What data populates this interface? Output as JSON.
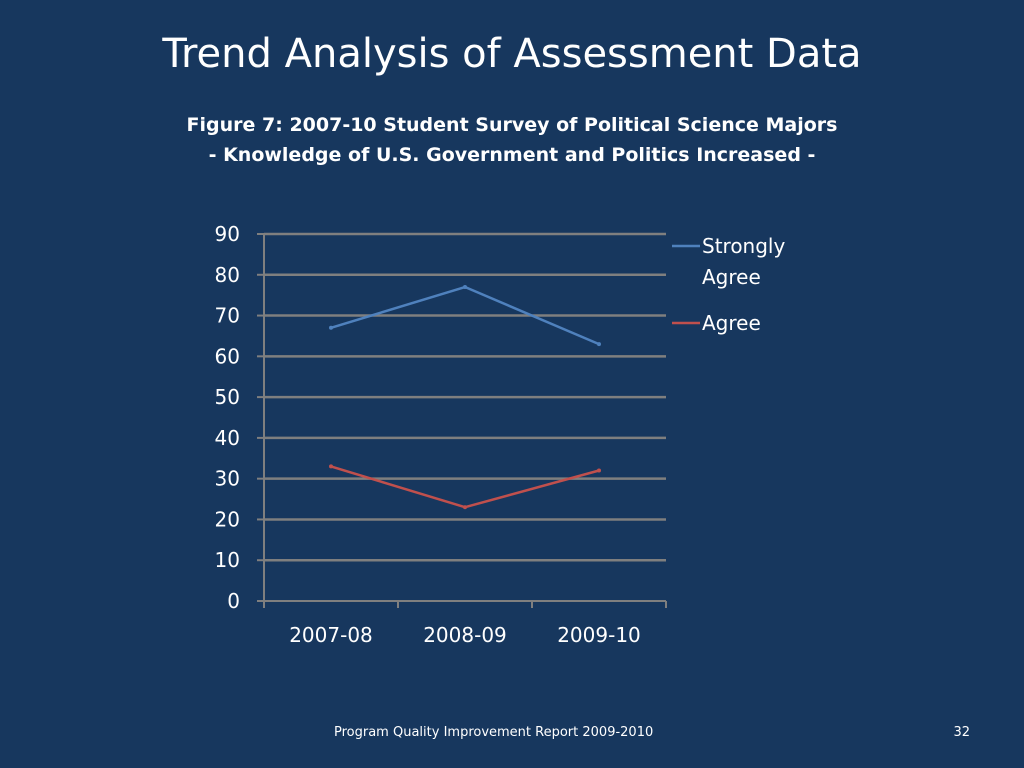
{
  "slide": {
    "title": "Trend Analysis of Assessment Data",
    "caption_line1": "Figure 7: 2007-10 Student Survey of Political Science Majors",
    "caption_line2": "- Knowledge of U.S. Government and Politics Increased -",
    "footer": "Program Quality Improvement Report 2009-2010",
    "page_number": "32"
  },
  "colors": {
    "background": "#17375e",
    "text": "#ffffff",
    "grid": "#7f7f7f",
    "strongly_agree": "#4f81bd",
    "agree": "#c0504d"
  },
  "chart_data": {
    "type": "line",
    "title": "Figure 7: 2007-10 Student Survey of Political Science Majors - Knowledge of U.S. Government and Politics Increased -",
    "xlabel": "",
    "ylabel": "",
    "categories": [
      "2007-08",
      "2008-09",
      "2009-10"
    ],
    "ylim": [
      0,
      90
    ],
    "yticks": [
      0,
      10,
      20,
      30,
      40,
      50,
      60,
      70,
      80,
      90
    ],
    "grid": true,
    "legend_position": "right",
    "series": [
      {
        "name": "Strongly Agree",
        "legend_lines": [
          "Strongly",
          "Agree"
        ],
        "values": [
          67,
          77,
          63
        ],
        "color": "#4f81bd"
      },
      {
        "name": "Agree",
        "legend_lines": [
          "Agree"
        ],
        "values": [
          33,
          23,
          32
        ],
        "color": "#c0504d"
      }
    ]
  }
}
